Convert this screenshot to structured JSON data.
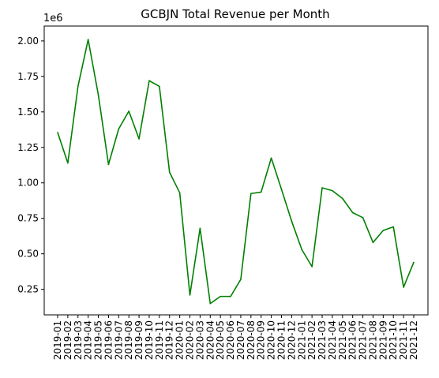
{
  "chart_data": {
    "type": "line",
    "title": "GCBJN Total Revenue per Month",
    "xlabel": "",
    "ylabel": "",
    "y_offset_label": "1e6",
    "line_color": "#008000",
    "grid": false,
    "ylim": [
      0.07,
      2.105
    ],
    "y_ticks": [
      0.25,
      0.5,
      0.75,
      1.0,
      1.25,
      1.5,
      1.75,
      2.0
    ],
    "y_tick_labels": [
      "0.25",
      "0.50",
      "0.75",
      "1.00",
      "1.25",
      "1.50",
      "1.75",
      "2.00"
    ],
    "categories": [
      "2019-01",
      "2019-02",
      "2019-03",
      "2019-04",
      "2019-05",
      "2019-06",
      "2019-07",
      "2019-08",
      "2019-09",
      "2019-10",
      "2019-11",
      "2019-12",
      "2020-01",
      "2020-02",
      "2020-03",
      "2020-04",
      "2020-05",
      "2020-06",
      "2020-07",
      "2020-08",
      "2020-09",
      "2020-10",
      "2020-11",
      "2020-12",
      "2021-01",
      "2021-02",
      "2021-03",
      "2021-04",
      "2021-05",
      "2021-06",
      "2021-07",
      "2021-08",
      "2021-09",
      "2021-10",
      "2021-11",
      "2021-12"
    ],
    "x_tick_labels": [
      "2019-01",
      "2019-02",
      "2019-03",
      "2019-04",
      "2019-05",
      "2019-06",
      "2019-07",
      "2019-08",
      "2019-09",
      "2019-10",
      "2019-11",
      "2019-12",
      "2020-01",
      "2020-02",
      "2020-03",
      "2020-04",
      "2020-05",
      "2020-06",
      "2020-07",
      "2020-08",
      "2020-09",
      "2020-10",
      "2020-11",
      "2020-12",
      "2021-01",
      "2021-02",
      "2021-03",
      "2021-04",
      "2021-05",
      "2021-06",
      "2021-07",
      "2021-08",
      "2021-09",
      "2021-10",
      "2021-11",
      "2021-12"
    ],
    "series": [
      {
        "values": [
          1.355,
          1.14,
          1.68,
          2.01,
          1.62,
          1.13,
          1.38,
          1.505,
          1.31,
          1.72,
          1.68,
          1.075,
          0.93,
          0.21,
          0.68,
          0.15,
          0.2,
          0.2,
          0.32,
          0.925,
          0.935,
          1.175,
          0.955,
          0.73,
          0.53,
          0.41,
          0.965,
          0.945,
          0.89,
          0.79,
          0.755,
          0.58,
          0.665,
          0.69,
          0.265,
          0.44
        ]
      }
    ]
  }
}
